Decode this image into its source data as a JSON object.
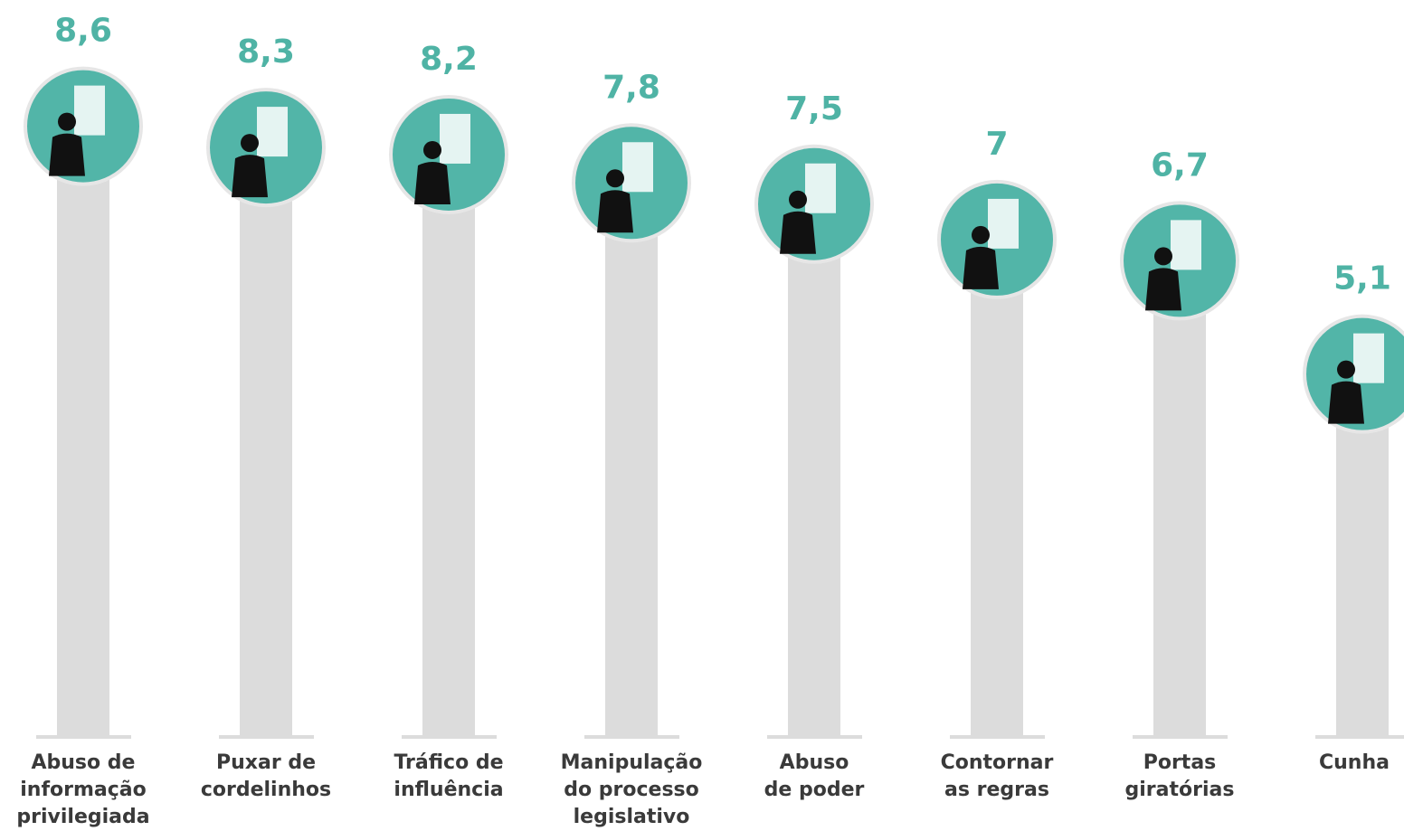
{
  "chart_data": {
    "type": "bar",
    "categories": [
      "Abuso de\ninformação\nprivilegiada",
      "Puxar de\ncordelinhos",
      "Tráfico de\ninfluência",
      "Manipulação\ndo processo\nlegislativo",
      "Abuso\nde poder",
      "Contornar\nas regras",
      "Portas\ngiratórias",
      "Cunha"
    ],
    "values": [
      8.6,
      8.3,
      8.2,
      7.8,
      7.5,
      7,
      6.7,
      5.1
    ],
    "value_labels": [
      "8,6",
      "8,3",
      "8,2",
      "7,8",
      "7,5",
      "7",
      "6,7",
      "5,1"
    ],
    "color": "#dcdcdc",
    "accent_color": "#52b5a8",
    "ylim": [
      0,
      10
    ]
  }
}
